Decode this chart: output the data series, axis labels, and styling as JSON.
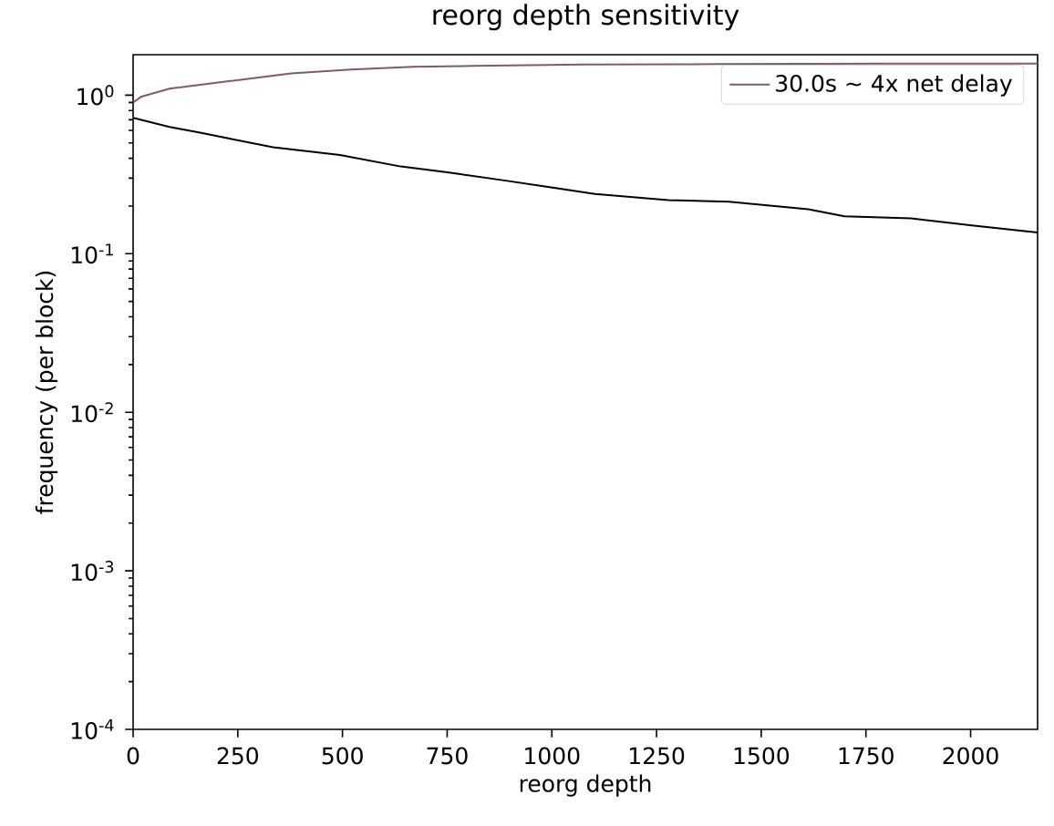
{
  "chart_data": {
    "type": "line",
    "title": "reorg depth sensitivity",
    "xlabel": "reorg depth",
    "ylabel": "frequency (per block)",
    "xlim": [
      0,
      2160
    ],
    "ylim": [
      0.0001,
      1.8
    ],
    "log": "y",
    "legend": "top right",
    "marker": "none",
    "line_style": "solid",
    "xticks": [
      0,
      250,
      500,
      750,
      1000,
      1250,
      1500,
      1750,
      2000
    ],
    "yticks": [
      {
        "value": 0.0001,
        "label": "10$^{-4}$"
      },
      {
        "value": 0.001,
        "label": "10$^{-3}$"
      },
      {
        "value": 0.01,
        "label": "10$^{-2}$"
      },
      {
        "value": 0.1,
        "label": "10$^{-1}$"
      },
      {
        "value": 1,
        "label": "10$^{0}$"
      }
    ],
    "series": [
      {
        "name": "30.0s ~ 4x net delay",
        "color": "#80596f",
        "x": [
          0,
          20,
          87,
          233,
          378,
          521,
          668,
          813,
          1075,
          1400,
          1800,
          2160
        ],
        "values": [
          0.9,
          0.98,
          1.1,
          1.23,
          1.37,
          1.45,
          1.51,
          1.53,
          1.56,
          1.57,
          1.58,
          1.58
        ]
      },
      {
        "color": "#000000",
        "x": [
          0,
          87,
          160,
          233,
          334,
          494,
          639,
          755,
          886,
          987,
          1103,
          1278,
          1423,
          1612,
          1699,
          1858,
          2003,
          2160
        ],
        "values": [
          0.72,
          0.63,
          0.58,
          0.53,
          0.47,
          0.42,
          0.355,
          0.325,
          0.29,
          0.265,
          0.238,
          0.218,
          0.213,
          0.191,
          0.172,
          0.167,
          0.151,
          0.136
        ]
      }
    ]
  }
}
